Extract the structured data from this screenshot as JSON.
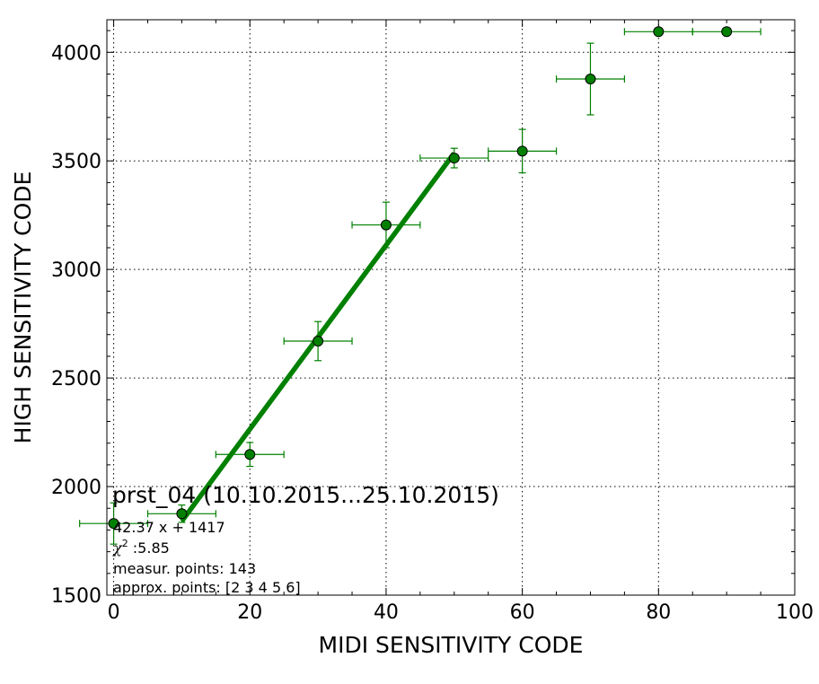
{
  "chart_data": {
    "type": "scatter",
    "xlabel": "MIDI SENSITIVITY CODE",
    "ylabel": "HIGH SENSITIVITY CODE",
    "xlim": [
      -1,
      100
    ],
    "ylim": [
      1500,
      4150
    ],
    "xticks": [
      0,
      20,
      40,
      60,
      80,
      100
    ],
    "yticks": [
      1500,
      2000,
      2500,
      3000,
      3500,
      4000
    ],
    "grid": true,
    "colors": {
      "series": "#008000",
      "marker_fill": "#008000",
      "marker_edge": "#000000"
    },
    "series": [
      {
        "points": [
          {
            "x": 0,
            "y": 1830,
            "xerr": 5,
            "yerr": 95
          },
          {
            "x": 10,
            "y": 1875,
            "xerr": 5,
            "yerr": 40
          },
          {
            "x": 20,
            "y": 2148,
            "xerr": 5,
            "yerr": 55
          },
          {
            "x": 30,
            "y": 2670,
            "xerr": 5,
            "yerr": 90
          },
          {
            "x": 40,
            "y": 3205,
            "xerr": 5,
            "yerr": 105
          },
          {
            "x": 50,
            "y": 3513,
            "xerr": 5,
            "yerr": 45
          },
          {
            "x": 60,
            "y": 3545,
            "xerr": 5,
            "yerr": 100
          },
          {
            "x": 70,
            "y": 3877,
            "xerr": 5,
            "yerr": 165
          },
          {
            "x": 80,
            "y": 4095,
            "xerr": 5,
            "yerr": 0
          },
          {
            "x": 90,
            "y": 4095,
            "xerr": 5,
            "yerr": 0
          }
        ]
      }
    ],
    "fit": {
      "slope": 42.37,
      "intercept": 1417,
      "x_from": 10,
      "x_to": 50
    },
    "annotation": {
      "title": "prst_04 (10.10.2015...25.10.2015)",
      "equation": "42.37 x + 1417",
      "chi_symbol": "χ",
      "chi_power": "2",
      "chi_value": " :5.85",
      "measur": "measur. points: 143",
      "approx": "approx. points: [2 3 4 5 6]"
    }
  }
}
